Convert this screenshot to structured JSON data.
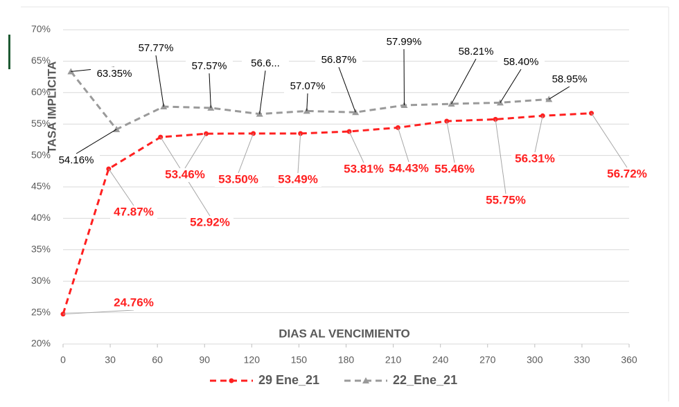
{
  "chart_data": {
    "type": "line",
    "y_label": "TASA IMPLICITA",
    "x_label": "DIAS AL VENCIMIENTO",
    "xlim": [
      0,
      360
    ],
    "xticks": [
      0,
      30,
      60,
      90,
      120,
      150,
      180,
      210,
      240,
      270,
      300,
      330,
      360
    ],
    "ylim": [
      20,
      70
    ],
    "yticks": [
      {
        "value": 20,
        "label": "20%"
      },
      {
        "value": 25,
        "label": "25%"
      },
      {
        "value": 30,
        "label": "30%"
      },
      {
        "value": 35,
        "label": "35%"
      },
      {
        "value": 40,
        "label": "40%"
      },
      {
        "value": 45,
        "label": "45%"
      },
      {
        "value": 50,
        "label": "50%"
      },
      {
        "value": 55,
        "label": "55%"
      },
      {
        "value": 60,
        "label": "60%"
      },
      {
        "value": 65,
        "label": "65%"
      },
      {
        "value": 70,
        "label": "70%"
      }
    ],
    "grid": true,
    "legend": "bottom",
    "series": [
      {
        "name": "29 Ene_21",
        "color": "#ff2020",
        "marker": "circle",
        "x": [
          0,
          29,
          62,
          91,
          121,
          151,
          182,
          213,
          244,
          275,
          305,
          336
        ],
        "values": [
          24.76,
          47.87,
          52.92,
          53.46,
          53.5,
          53.49,
          53.81,
          54.43,
          55.46,
          55.75,
          56.31,
          56.72
        ],
        "value_labels": [
          "24.76%",
          "47.87%",
          "52.92%",
          "53.46%",
          "53.50%",
          "53.49%",
          "53.81%",
          "54.43%",
          "55.46%",
          "55.75%",
          "56.31%",
          "56.72%"
        ]
      },
      {
        "name": "22_Ene_21",
        "color": "#9a9a9a",
        "marker": "triangle",
        "x": [
          5,
          34,
          64,
          94,
          125,
          155,
          186,
          217,
          247,
          278,
          309
        ],
        "values": [
          63.35,
          54.16,
          57.77,
          57.57,
          56.6,
          57.07,
          56.87,
          57.99,
          58.21,
          58.4,
          58.95
        ],
        "value_labels": [
          "63.35%",
          "54.16%",
          "57.77%",
          "57.57%",
          "56.6...",
          "57.07%",
          "56.87%",
          "57.99%",
          "58.21%",
          "58.40%",
          "58.95%"
        ]
      }
    ]
  }
}
